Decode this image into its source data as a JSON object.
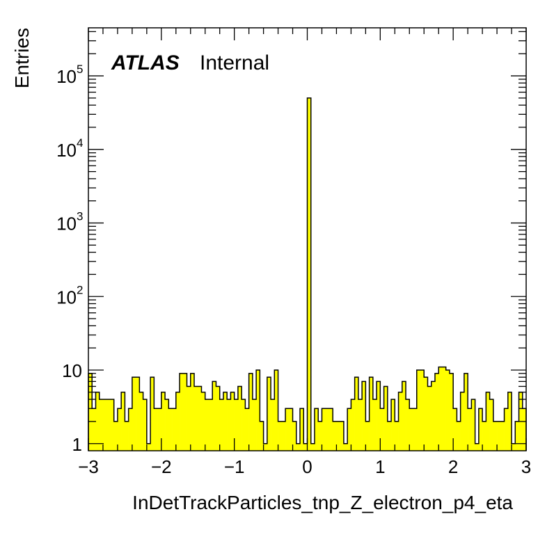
{
  "chart_data": {
    "type": "bar",
    "xlabel": "InDetTrackParticles_tnp_Z_electron_p4_eta",
    "ylabel": "Entries",
    "label_atlas": "ATLAS",
    "label_status": "Internal",
    "xlim": [
      -3,
      3
    ],
    "ylim": [
      0.8,
      450000
    ],
    "yscale": "log",
    "bin_width": 0.05,
    "fill_color": "#ffff00",
    "line_color": "#000000",
    "x_ticks": [
      "−3",
      "−2",
      "−1",
      "0",
      "1",
      "2",
      "3"
    ],
    "y_ticks": [
      {
        "base": "1",
        "exp": ""
      },
      {
        "base": "10",
        "exp": ""
      },
      {
        "base": "10",
        "exp": "2"
      },
      {
        "base": "10",
        "exp": "3"
      },
      {
        "base": "10",
        "exp": "4"
      },
      {
        "base": "10",
        "exp": "5"
      }
    ],
    "values": [
      9,
      3,
      5,
      4,
      4,
      4,
      4,
      2,
      3,
      5,
      2,
      3,
      8,
      8,
      5,
      4,
      1,
      8,
      3,
      3,
      5,
      4,
      3,
      3,
      5,
      9,
      9,
      6,
      9,
      6,
      6,
      5,
      4,
      4,
      7,
      6,
      4,
      5,
      4,
      5,
      4,
      6,
      4,
      3,
      9,
      4,
      10,
      2,
      1,
      8,
      4,
      10,
      2,
      2,
      3,
      3,
      2,
      1,
      3,
      1,
      50000,
      1,
      3,
      2,
      3,
      3,
      3,
      2,
      2,
      2,
      1,
      3,
      4,
      8,
      4,
      7,
      2,
      8,
      4,
      7,
      3,
      6,
      2,
      4,
      2,
      5,
      7,
      4,
      3,
      3,
      10,
      10,
      8,
      6,
      7,
      9,
      11,
      11,
      10,
      9,
      3,
      2,
      5,
      9,
      3,
      4,
      1,
      3,
      2,
      5,
      4,
      2,
      2,
      2,
      3,
      5,
      1,
      2,
      5,
      3
    ]
  }
}
